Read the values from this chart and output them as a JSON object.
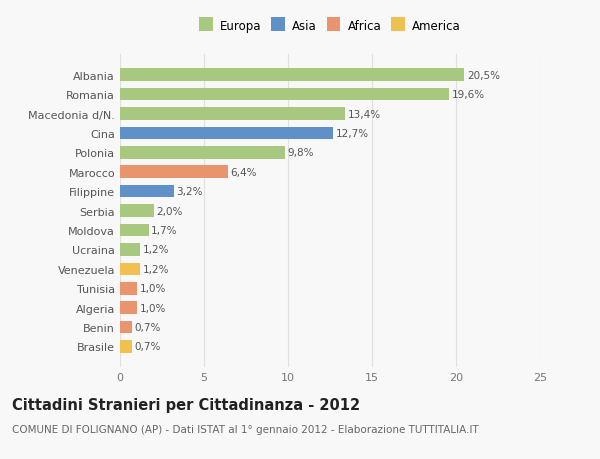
{
  "categories": [
    "Brasile",
    "Benin",
    "Algeria",
    "Tunisia",
    "Venezuela",
    "Ucraina",
    "Moldova",
    "Serbia",
    "Filippine",
    "Marocco",
    "Polonia",
    "Cina",
    "Macedonia d/N.",
    "Romania",
    "Albania"
  ],
  "values": [
    0.7,
    0.7,
    1.0,
    1.0,
    1.2,
    1.2,
    1.7,
    2.0,
    3.2,
    6.4,
    9.8,
    12.7,
    13.4,
    19.6,
    20.5
  ],
  "labels": [
    "0,7%",
    "0,7%",
    "1,0%",
    "1,0%",
    "1,2%",
    "1,2%",
    "1,7%",
    "2,0%",
    "3,2%",
    "6,4%",
    "9,8%",
    "12,7%",
    "13,4%",
    "19,6%",
    "20,5%"
  ],
  "colors": [
    "#f0c050",
    "#e8956d",
    "#e8956d",
    "#e8956d",
    "#f0c050",
    "#a8c880",
    "#a8c880",
    "#a8c880",
    "#6090c8",
    "#e8956d",
    "#a8c880",
    "#6090c8",
    "#a8c880",
    "#a8c880",
    "#a8c880"
  ],
  "legend_labels": [
    "Europa",
    "Asia",
    "Africa",
    "America"
  ],
  "legend_colors": [
    "#a8c880",
    "#6090c8",
    "#e8956d",
    "#f0c050"
  ],
  "title": "Cittadini Stranieri per Cittadinanza - 2012",
  "subtitle": "COMUNE DI FOLIGNANO (AP) - Dati ISTAT al 1° gennaio 2012 - Elaborazione TUTTITALIA.IT",
  "xlim": [
    0,
    25
  ],
  "xticks": [
    0,
    5,
    10,
    15,
    20,
    25
  ],
  "bg_color": "#f8f8f8",
  "grid_color": "#e0e0e0",
  "bar_height": 0.65,
  "label_fontsize": 7.5,
  "tick_fontsize": 8,
  "title_fontsize": 10.5,
  "subtitle_fontsize": 7.5
}
